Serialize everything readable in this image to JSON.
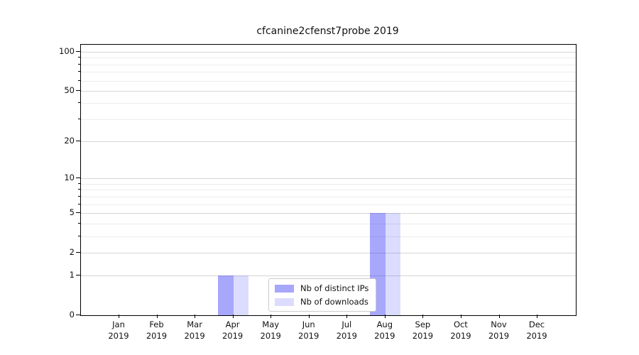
{
  "title": "cfcanine2cfenst7probe 2019",
  "colors": {
    "distinct_ips": "rgba(10,10,245,0.36)",
    "downloads": "rgba(10,10,245,0.14)",
    "grid_major": "#d6d6d6",
    "grid_minor": "#ececec",
    "axis": "#000000"
  },
  "legend": {
    "items": [
      {
        "label": "Nb of distinct IPs",
        "color_key": "distinct_ips"
      },
      {
        "label": "Nb of downloads",
        "color_key": "downloads"
      }
    ]
  },
  "chart_data": {
    "type": "bar",
    "title": "cfcanine2cfenst7probe 2019",
    "categories": [
      "Jan 2019",
      "Feb 2019",
      "Mar 2019",
      "Apr 2019",
      "May 2019",
      "Jun 2019",
      "Jul 2019",
      "Aug 2019",
      "Sep 2019",
      "Oct 2019",
      "Nov 2019",
      "Dec 2019"
    ],
    "series": [
      {
        "name": "Nb of distinct IPs",
        "values": [
          0,
          0,
          0,
          1,
          0,
          0,
          0,
          5,
          0,
          0,
          0,
          0
        ]
      },
      {
        "name": "Nb of downloads",
        "values": [
          0,
          0,
          0,
          1,
          0,
          0,
          0,
          5,
          0,
          0,
          0,
          0
        ]
      }
    ],
    "xlabel": "",
    "ylabel": "",
    "yscale": "log1p",
    "yticks": [
      0,
      1,
      2,
      5,
      10,
      20,
      50,
      100
    ],
    "yticks_minor": [
      3,
      4,
      6,
      7,
      8,
      9,
      30,
      40,
      60,
      70,
      80,
      90
    ],
    "ylim": [
      0,
      113
    ],
    "grid": "horizontal major and minor",
    "legend_position": "lower center"
  }
}
